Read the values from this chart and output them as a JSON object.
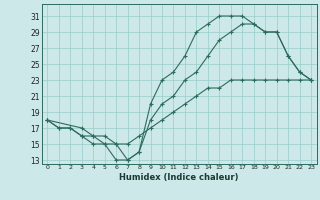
{
  "title": "",
  "xlabel": "Humidex (Indice chaleur)",
  "bg_color": "#cce8e8",
  "grid_color": "#99cccc",
  "line_color": "#2d6b5e",
  "xlim": [
    -0.5,
    23.5
  ],
  "ylim": [
    12.5,
    32.5
  ],
  "xticks": [
    0,
    1,
    2,
    3,
    4,
    5,
    6,
    7,
    8,
    9,
    10,
    11,
    12,
    13,
    14,
    15,
    16,
    17,
    18,
    19,
    20,
    21,
    22,
    23
  ],
  "yticks": [
    13,
    15,
    17,
    19,
    21,
    23,
    25,
    27,
    29,
    31
  ],
  "line1_x": [
    0,
    1,
    2,
    3,
    4,
    5,
    6,
    7,
    8,
    9,
    10,
    11,
    12,
    13,
    14,
    15,
    16,
    17,
    18,
    19,
    20,
    21,
    22,
    23
  ],
  "line1_y": [
    18,
    17,
    17,
    16,
    15,
    15,
    13,
    13,
    14,
    20,
    23,
    24,
    26,
    29,
    30,
    31,
    31,
    31,
    30,
    29,
    29,
    26,
    24,
    23
  ],
  "line2_x": [
    0,
    3,
    4,
    5,
    6,
    7,
    8,
    9,
    10,
    11,
    12,
    13,
    14,
    15,
    16,
    17,
    18,
    19,
    20,
    21,
    22,
    23
  ],
  "line2_y": [
    18,
    17,
    16,
    15,
    15,
    13,
    14,
    18,
    20,
    21,
    23,
    24,
    26,
    28,
    29,
    30,
    30,
    29,
    29,
    26,
    24,
    23
  ],
  "line3_x": [
    0,
    1,
    2,
    3,
    4,
    5,
    6,
    7,
    8,
    9,
    10,
    11,
    12,
    13,
    14,
    15,
    16,
    17,
    18,
    19,
    20,
    21,
    22,
    23
  ],
  "line3_y": [
    18,
    17,
    17,
    16,
    16,
    16,
    15,
    15,
    16,
    17,
    18,
    19,
    20,
    21,
    22,
    22,
    23,
    23,
    23,
    23,
    23,
    23,
    23,
    23
  ]
}
